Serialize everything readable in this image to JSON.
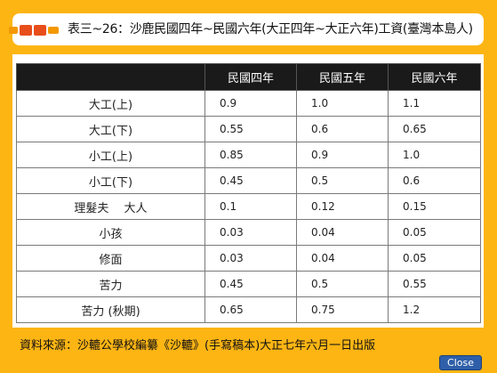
{
  "title": "表三~26：沙鹿民國四年~民國六年(大正四年~大正六年)工資(臺灣本島人)",
  "table": {
    "headers": [
      "",
      "民國四年",
      "民國五年",
      "民國六年"
    ],
    "rows": [
      {
        "label": "大工(上)",
        "values": [
          "0.9",
          "1.0",
          "1.1"
        ]
      },
      {
        "label": "大工(下)",
        "values": [
          "0.55",
          "0.6",
          "0.65"
        ]
      },
      {
        "label": "小工(上)",
        "values": [
          "0.85",
          "0.9",
          "1.0"
        ]
      },
      {
        "label": "小工(下)",
        "values": [
          "0.45",
          "0.5",
          "0.6"
        ]
      },
      {
        "label": "理髮夫　 大人",
        "values": [
          "0.1",
          "0.12",
          "0.15"
        ]
      },
      {
        "label": "小孩",
        "values": [
          "0.03",
          "0.04",
          "0.05"
        ]
      },
      {
        "label": "修面",
        "values": [
          "0.03",
          "0.04",
          "0.05"
        ]
      },
      {
        "label": "苦力",
        "values": [
          "0.45",
          "0.5",
          "0.55"
        ]
      },
      {
        "label": "苦力 (秋期)",
        "values": [
          "0.65",
          "0.75",
          "1.2"
        ]
      }
    ]
  },
  "source": "資料來源：沙轆公學校編纂《沙轆》(手寫稿本)大正七年六月一日出版",
  "close_label": "Close",
  "colors": {
    "frame": "#fdb514",
    "header_bg": "#1a1a1a",
    "deco_red": "#e84e1b",
    "deco_orange": "#f39800",
    "button": "#2f5fa8"
  }
}
